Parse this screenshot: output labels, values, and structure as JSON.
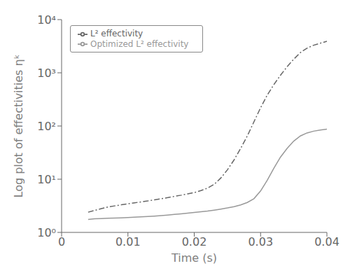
{
  "chart_data": {
    "type": "line",
    "xlabel": "Time (s)",
    "ylabel": "Log plot of effectivities ηᵏ",
    "x": [
      0.004,
      0.005,
      0.006,
      0.007,
      0.008,
      0.009,
      0.01,
      0.011,
      0.012,
      0.013,
      0.014,
      0.015,
      0.016,
      0.017,
      0.018,
      0.019,
      0.02,
      0.021,
      0.022,
      0.023,
      0.024,
      0.025,
      0.026,
      0.027,
      0.028,
      0.029,
      0.03,
      0.031,
      0.032,
      0.033,
      0.034,
      0.035,
      0.036,
      0.037,
      0.038,
      0.039,
      0.04
    ],
    "series": [
      {
        "name": "L² effectivity",
        "color": "#666666",
        "line_style": "dashdot",
        "values": [
          2.4,
          2.6,
          2.8,
          3.0,
          3.15,
          3.3,
          3.45,
          3.6,
          3.75,
          3.9,
          4.1,
          4.3,
          4.5,
          4.75,
          5.0,
          5.3,
          5.6,
          6.1,
          6.8,
          8.0,
          10.5,
          15.0,
          23.0,
          38.0,
          65.0,
          120.0,
          220.0,
          380.0,
          600.0,
          900.0,
          1300.0,
          1800.0,
          2400.0,
          2900.0,
          3300.0,
          3600.0,
          3900.0
        ]
      },
      {
        "name": "Optimized L² effectivity",
        "color": "#999999",
        "line_style": "solid",
        "values": [
          1.75,
          1.8,
          1.82,
          1.84,
          1.86,
          1.88,
          1.9,
          1.93,
          1.96,
          1.99,
          2.03,
          2.07,
          2.12,
          2.18,
          2.24,
          2.3,
          2.37,
          2.44,
          2.52,
          2.62,
          2.74,
          2.88,
          3.05,
          3.28,
          3.65,
          4.3,
          6.0,
          9.5,
          16.0,
          26.0,
          38.0,
          52.0,
          65.0,
          74.0,
          80.0,
          84.0,
          87.0
        ]
      }
    ],
    "xlim": [
      0,
      0.04
    ],
    "ylim": [
      1,
      10000
    ],
    "xticks": [
      0,
      0.01,
      0.02,
      0.03,
      0.04
    ],
    "yticks": [
      {
        "value": 1,
        "label": "10⁰"
      },
      {
        "value": 10,
        "label": "10¹"
      },
      {
        "value": 100,
        "label": "10²"
      },
      {
        "value": 1000,
        "label": "10³"
      },
      {
        "value": 10000,
        "label": "10⁴"
      }
    ],
    "log": "y",
    "legend": "upper left",
    "grid": false
  }
}
